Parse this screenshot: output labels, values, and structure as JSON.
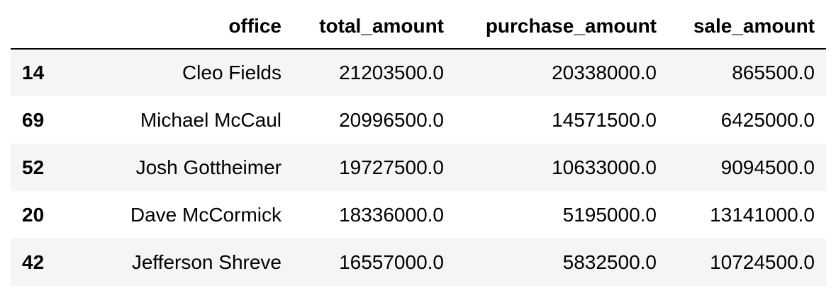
{
  "table": {
    "columns": [
      "",
      "office",
      "total_amount",
      "purchase_amount",
      "sale_amount"
    ],
    "rows": [
      {
        "index": "14",
        "office": "Cleo Fields",
        "total_amount": "21203500.0",
        "purchase_amount": "20338000.0",
        "sale_amount": "865500.0"
      },
      {
        "index": "69",
        "office": "Michael McCaul",
        "total_amount": "20996500.0",
        "purchase_amount": "14571500.0",
        "sale_amount": "6425000.0"
      },
      {
        "index": "52",
        "office": "Josh Gottheimer",
        "total_amount": "19727500.0",
        "purchase_amount": "10633000.0",
        "sale_amount": "9094500.0"
      },
      {
        "index": "20",
        "office": "Dave McCormick",
        "total_amount": "18336000.0",
        "purchase_amount": "5195000.0",
        "sale_amount": "13141000.0"
      },
      {
        "index": "42",
        "office": "Jefferson Shreve",
        "total_amount": "16557000.0",
        "purchase_amount": "5832500.0",
        "sale_amount": "10724500.0"
      }
    ]
  }
}
